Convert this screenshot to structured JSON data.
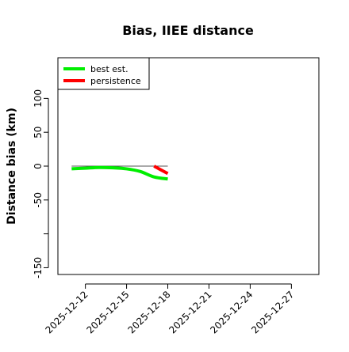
{
  "chart_data": {
    "type": "line",
    "title": "Bias, IIEE distance",
    "xlabel": "",
    "ylabel": "Distance bias (km)",
    "x_range": [
      "2025-12-10",
      "2025-12-29"
    ],
    "ylim": [
      -160,
      160
    ],
    "x_ticks": [
      "2025-12-12",
      "2025-12-15",
      "2025-12-18",
      "2025-12-21",
      "2025-12-24",
      "2025-12-27"
    ],
    "y_ticks": [
      -150,
      -100,
      -50,
      0,
      50,
      100
    ],
    "y_tick_labels": [
      "-150",
      "",
      "-50",
      "0",
      "50",
      "100"
    ],
    "grid": false,
    "legend_position": "top-left",
    "reference_line": {
      "y": 0,
      "x_start": "2025-12-11",
      "x_end": "2025-12-18",
      "color": "#555555"
    },
    "series": [
      {
        "name": "best est.",
        "color": "#00ee00",
        "points": [
          {
            "x": "2025-12-11",
            "y": -4
          },
          {
            "x": "2025-12-12",
            "y": -3
          },
          {
            "x": "2025-12-13",
            "y": -2
          },
          {
            "x": "2025-12-14",
            "y": -2.5
          },
          {
            "x": "2025-12-15",
            "y": -4
          },
          {
            "x": "2025-12-16",
            "y": -8
          },
          {
            "x": "2025-12-17",
            "y": -16
          },
          {
            "x": "2025-12-18",
            "y": -19
          }
        ]
      },
      {
        "name": "persistence",
        "color": "#ff0000",
        "points": [
          {
            "x": "2025-12-17",
            "y": 0
          },
          {
            "x": "2025-12-18",
            "y": -11
          }
        ]
      }
    ]
  }
}
